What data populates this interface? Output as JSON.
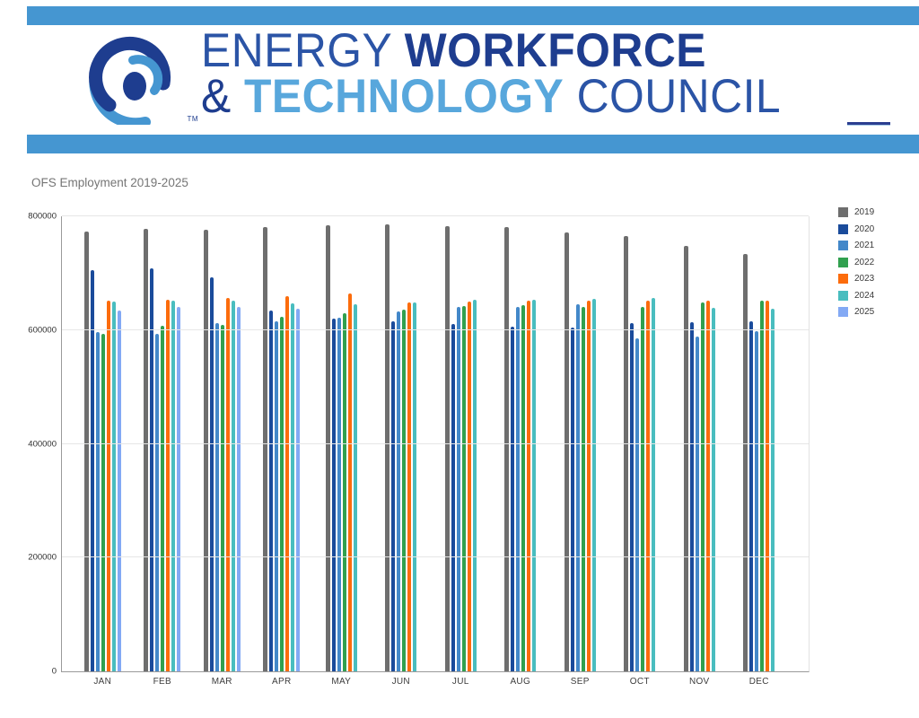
{
  "header": {
    "line1_light": "ENERGY",
    "line1_bold": "WORKFORCE",
    "line2_amp": "&",
    "line2_bold": "TECHNOLOGY",
    "line2_light": "COUNCIL",
    "trademark": "TM",
    "band_color": "#4596D1",
    "navy_color": "#1E3D8F",
    "light_blue_color": "#58A7DC",
    "medium_blue_color": "#2B54A6"
  },
  "chart_data": {
    "type": "bar",
    "title": "OFS Employment 2019-2025",
    "xlabel": "",
    "ylabel": "",
    "ylim": [
      0,
      800000
    ],
    "yticks": [
      0,
      200000,
      400000,
      600000,
      800000
    ],
    "ytick_labels": [
      "0",
      "200000",
      "400000",
      "600000",
      "800000"
    ],
    "grid": true,
    "legend_position": "right",
    "categories": [
      "JAN",
      "FEB",
      "MAR",
      "APR",
      "MAY",
      "JUN",
      "JUL",
      "AUG",
      "SEP",
      "OCT",
      "NOV",
      "DEC"
    ],
    "series": [
      {
        "name": "2019",
        "color": "#6E6E6E",
        "values": [
          773000,
          778000,
          776000,
          781000,
          784000,
          786000,
          783000,
          781000,
          771000,
          765000,
          748000,
          733000
        ]
      },
      {
        "name": "2020",
        "color": "#1A4B9B",
        "values": [
          706000,
          708000,
          692000,
          634000,
          620000,
          615000,
          610000,
          606000,
          605000,
          612000,
          614000,
          616000
        ]
      },
      {
        "name": "2021",
        "color": "#4388C9",
        "values": [
          597000,
          594000,
          613000,
          616000,
          621000,
          632000,
          640000,
          640000,
          645000,
          586000,
          589000,
          598000
        ]
      },
      {
        "name": "2022",
        "color": "#31A04F",
        "values": [
          594000,
          607000,
          609000,
          624000,
          630000,
          636000,
          642000,
          644000,
          640000,
          640000,
          648000,
          652000
        ]
      },
      {
        "name": "2023",
        "color": "#FC6C0C",
        "values": [
          651000,
          654000,
          656000,
          660000,
          664000,
          648000,
          650000,
          652000,
          651000,
          652000,
          651000,
          652000
        ]
      },
      {
        "name": "2024",
        "color": "#49BDBF",
        "values": [
          650000,
          651000,
          652000,
          647000,
          646000,
          649000,
          654000,
          654000,
          655000,
          656000,
          639000,
          638000
        ]
      },
      {
        "name": "2025",
        "color": "#83A9F4",
        "values": [
          634000,
          640000,
          640000,
          638000,
          null,
          null,
          null,
          null,
          null,
          null,
          null,
          null
        ]
      }
    ]
  }
}
